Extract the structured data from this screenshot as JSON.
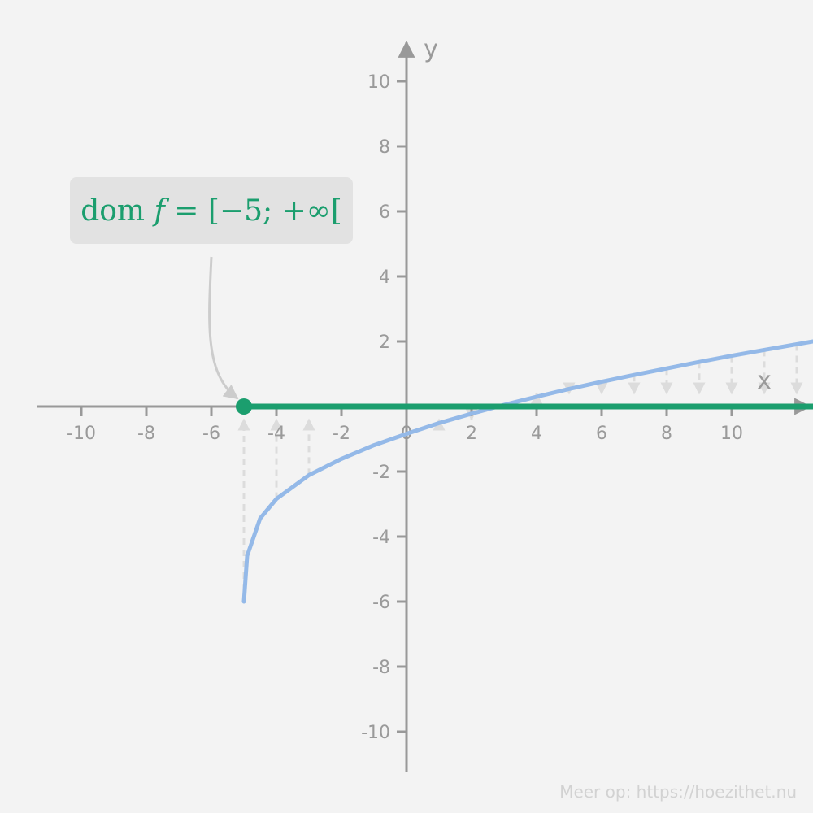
{
  "callout": {
    "prefix": "dom ",
    "func": "f",
    "suffix": " = [−5; +∞["
  },
  "footer": "Meer op: https://hoezithet.nu",
  "chart_data": {
    "type": "line",
    "title": "",
    "xlabel": "x",
    "ylabel": "y",
    "xlim": [
      -11.3,
      12.5
    ],
    "ylim": [
      -11.3,
      11.3
    ],
    "x_ticks": [
      "-10",
      "-8",
      "-6",
      "-4",
      "-2",
      "0",
      "2",
      "4",
      "6",
      "8",
      "10"
    ],
    "x_tick_values": [
      -10,
      -8,
      -6,
      -4,
      -2,
      0,
      2,
      4,
      6,
      8,
      10
    ],
    "y_ticks": [
      "10",
      "8",
      "6",
      "4",
      "2",
      "0",
      "-2",
      "-4",
      "-6",
      "-8",
      "-10"
    ],
    "y_tick_values": [
      10,
      8,
      6,
      4,
      2,
      0,
      -2,
      -4,
      -6,
      -8,
      -10
    ],
    "grid": false,
    "function": {
      "x": [
        -5,
        -4.9,
        -4.5,
        -4,
        -3,
        -2,
        -1,
        0,
        1,
        2,
        3,
        4,
        5,
        6,
        7,
        8,
        9,
        10,
        11,
        12.5
      ],
      "y": [
        -6,
        -4.59,
        -3.44,
        -2.84,
        -2.11,
        -1.61,
        -1.19,
        -0.84,
        -0.51,
        -0.22,
        0.05,
        0.3,
        0.54,
        0.76,
        0.97,
        1.17,
        1.37,
        1.56,
        1.74,
        2.0
      ],
      "color": "#94b9e8"
    },
    "domain": {
      "start": -5,
      "closed_start": true,
      "end": "+∞",
      "color": "#1b9e6e"
    },
    "projection_arrows": {
      "x": [
        -5,
        -4,
        -3,
        1,
        2,
        3,
        4,
        5,
        6,
        7,
        8,
        9,
        10,
        11,
        12
      ],
      "color": "#dcdcdc"
    }
  }
}
